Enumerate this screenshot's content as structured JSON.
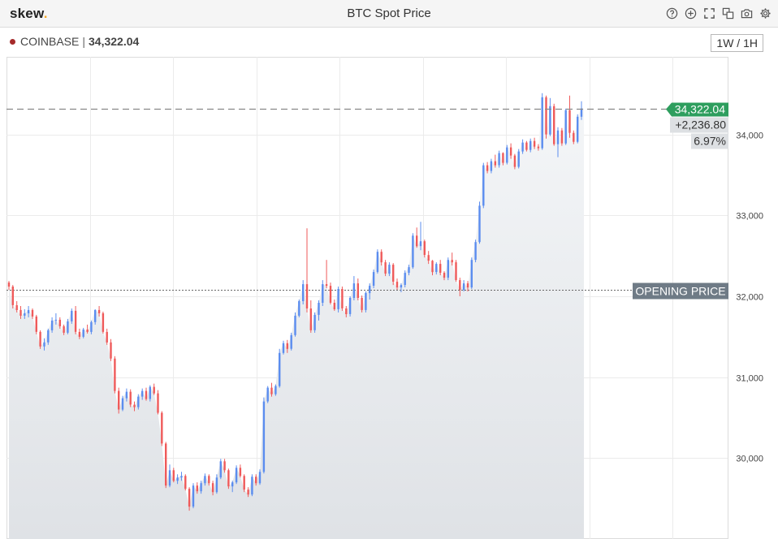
{
  "app": {
    "logo_text": "skew",
    "logo_dot": ".",
    "title": "BTC Spot Price"
  },
  "toolbar_icons": [
    "help-icon",
    "add-icon",
    "fullscreen-icon",
    "duplicate-icon",
    "camera-icon",
    "settings-icon"
  ],
  "series_info": {
    "exchange": "COINBASE",
    "separator": "|",
    "last_price": "34,322.04"
  },
  "interval_button": "1W / 1H",
  "price_tags": {
    "last": "34,322.04",
    "change": "+2,236.80",
    "change_pct": "6.97%",
    "opening_label": "OPENING PRICE"
  },
  "colors": {
    "up": "#5b8def",
    "down": "#ef5a5a",
    "last_tag": "#2e9e5e",
    "opening_tag": "#6f7b86"
  },
  "chart_data": {
    "type": "candlestick",
    "title": "BTC Spot Price",
    "ylim": [
      29000,
      34960
    ],
    "yticks": [
      30000,
      31000,
      32000,
      33000,
      34000
    ],
    "ytick_labels": [
      "30,000",
      "31,000",
      "32,000",
      "33,000",
      "34,000"
    ],
    "opening_price": 32085,
    "last_price": 34322.04,
    "grid": true,
    "candles": [
      [
        32170,
        32190,
        32080,
        32120
      ],
      [
        32120,
        32140,
        31850,
        31890
      ],
      [
        31890,
        31940,
        31800,
        31830
      ],
      [
        31830,
        31880,
        31720,
        31760
      ],
      [
        31760,
        31840,
        31720,
        31790
      ],
      [
        31790,
        31880,
        31740,
        31830
      ],
      [
        31830,
        31850,
        31720,
        31750
      ],
      [
        31750,
        31770,
        31530,
        31560
      ],
      [
        31560,
        31580,
        31350,
        31380
      ],
      [
        31380,
        31480,
        31330,
        31430
      ],
      [
        31430,
        31600,
        31400,
        31580
      ],
      [
        31580,
        31740,
        31550,
        31700
      ],
      [
        31700,
        31790,
        31650,
        31710
      ],
      [
        31710,
        31740,
        31600,
        31630
      ],
      [
        31630,
        31650,
        31520,
        31550
      ],
      [
        31550,
        31720,
        31530,
        31690
      ],
      [
        31690,
        31850,
        31660,
        31820
      ],
      [
        31820,
        31880,
        31530,
        31560
      ],
      [
        31560,
        31600,
        31470,
        31500
      ],
      [
        31500,
        31610,
        31480,
        31590
      ],
      [
        31590,
        31650,
        31540,
        31560
      ],
      [
        31560,
        31700,
        31530,
        31680
      ],
      [
        31680,
        31840,
        31650,
        31830
      ],
      [
        31830,
        31880,
        31750,
        31790
      ],
      [
        31790,
        31810,
        31540,
        31560
      ],
      [
        31560,
        31600,
        31400,
        31430
      ],
      [
        31430,
        31470,
        31200,
        31230
      ],
      [
        31230,
        31260,
        30800,
        30830
      ],
      [
        30830,
        30870,
        30550,
        30600
      ],
      [
        30600,
        30770,
        30580,
        30740
      ],
      [
        30740,
        30860,
        30700,
        30820
      ],
      [
        30820,
        30850,
        30630,
        30660
      ],
      [
        30660,
        30700,
        30580,
        30630
      ],
      [
        30630,
        30790,
        30600,
        30760
      ],
      [
        30760,
        30860,
        30720,
        30830
      ],
      [
        30830,
        30870,
        30710,
        30730
      ],
      [
        30730,
        30900,
        30700,
        30880
      ],
      [
        30880,
        30920,
        30780,
        30800
      ],
      [
        30800,
        30840,
        30540,
        30560
      ],
      [
        30560,
        30580,
        30150,
        30180
      ],
      [
        30180,
        30200,
        29630,
        29660
      ],
      [
        29660,
        29920,
        29640,
        29850
      ],
      [
        29850,
        29880,
        29700,
        29720
      ],
      [
        29720,
        29800,
        29680,
        29760
      ],
      [
        29760,
        29830,
        29720,
        29780
      ],
      [
        29780,
        29800,
        29600,
        29620
      ],
      [
        29620,
        29640,
        29350,
        29400
      ],
      [
        29400,
        29690,
        29380,
        29660
      ],
      [
        29660,
        29700,
        29560,
        29590
      ],
      [
        29590,
        29720,
        29560,
        29690
      ],
      [
        29690,
        29810,
        29660,
        29780
      ],
      [
        29780,
        29800,
        29660,
        29690
      ],
      [
        29690,
        29720,
        29540,
        29580
      ],
      [
        29580,
        29800,
        29560,
        29760
      ],
      [
        29760,
        29990,
        29740,
        29960
      ],
      [
        29960,
        29990,
        29820,
        29850
      ],
      [
        29850,
        29870,
        29620,
        29650
      ],
      [
        29650,
        29720,
        29580,
        29700
      ],
      [
        29700,
        29910,
        29680,
        29880
      ],
      [
        29880,
        29920,
        29760,
        29780
      ],
      [
        29780,
        29800,
        29580,
        29610
      ],
      [
        29610,
        29640,
        29520,
        29550
      ],
      [
        29550,
        29800,
        29530,
        29770
      ],
      [
        29770,
        29800,
        29660,
        29690
      ],
      [
        29690,
        29860,
        29670,
        29830
      ],
      [
        29830,
        30750,
        29810,
        30700
      ],
      [
        30700,
        30890,
        30680,
        30870
      ],
      [
        30870,
        30930,
        30760,
        30790
      ],
      [
        30790,
        30910,
        30770,
        30890
      ],
      [
        30890,
        31350,
        30870,
        31300
      ],
      [
        31300,
        31450,
        31280,
        31420
      ],
      [
        31420,
        31460,
        31300,
        31350
      ],
      [
        31350,
        31550,
        31330,
        31520
      ],
      [
        31520,
        31800,
        31500,
        31760
      ],
      [
        31760,
        31960,
        31740,
        31940
      ],
      [
        31940,
        32200,
        31900,
        32150
      ],
      [
        32150,
        32840,
        31800,
        31850
      ],
      [
        31850,
        31950,
        31550,
        31580
      ],
      [
        31580,
        31800,
        31550,
        31770
      ],
      [
        31770,
        31950,
        31700,
        31920
      ],
      [
        31920,
        32200,
        31880,
        32150
      ],
      [
        32150,
        32450,
        32100,
        32130
      ],
      [
        32130,
        32170,
        31900,
        31920
      ],
      [
        31920,
        31960,
        31820,
        31840
      ],
      [
        31840,
        32120,
        31800,
        32090
      ],
      [
        32090,
        32120,
        31820,
        31850
      ],
      [
        31850,
        31880,
        31740,
        31780
      ],
      [
        31780,
        32000,
        31750,
        31980
      ],
      [
        31980,
        32250,
        31950,
        32160
      ],
      [
        32160,
        32220,
        31950,
        31980
      ],
      [
        31980,
        32010,
        31800,
        31830
      ],
      [
        31830,
        32060,
        31800,
        32040
      ],
      [
        32040,
        32160,
        31960,
        32130
      ],
      [
        32130,
        32330,
        32100,
        32300
      ],
      [
        32300,
        32580,
        32280,
        32550
      ],
      [
        32550,
        32580,
        32380,
        32420
      ],
      [
        32420,
        32450,
        32250,
        32280
      ],
      [
        32280,
        32420,
        32250,
        32390
      ],
      [
        32390,
        32410,
        32140,
        32180
      ],
      [
        32180,
        32220,
        32080,
        32110
      ],
      [
        32110,
        32160,
        32050,
        32140
      ],
      [
        32140,
        32320,
        32110,
        32290
      ],
      [
        32290,
        32390,
        32260,
        32360
      ],
      [
        32360,
        32780,
        32340,
        32750
      ],
      [
        32750,
        32850,
        32600,
        32620
      ],
      [
        32620,
        32920,
        32570,
        32680
      ],
      [
        32680,
        32700,
        32480,
        32510
      ],
      [
        32510,
        32560,
        32400,
        32440
      ],
      [
        32440,
        32450,
        32260,
        32300
      ],
      [
        32300,
        32420,
        32270,
        32400
      ],
      [
        32400,
        32450,
        32260,
        32290
      ],
      [
        32290,
        32310,
        32200,
        32230
      ],
      [
        32230,
        32480,
        32200,
        32450
      ],
      [
        32450,
        32540,
        32380,
        32420
      ],
      [
        32420,
        32450,
        32180,
        32200
      ],
      [
        32200,
        32230,
        32000,
        32080
      ],
      [
        32080,
        32200,
        32060,
        32160
      ],
      [
        32160,
        32190,
        32060,
        32110
      ],
      [
        32110,
        32480,
        32090,
        32450
      ],
      [
        32450,
        32700,
        32420,
        32670
      ],
      [
        32670,
        33170,
        32650,
        33120
      ],
      [
        33120,
        33650,
        33090,
        33620
      ],
      [
        33620,
        33660,
        33520,
        33550
      ],
      [
        33550,
        33700,
        33520,
        33670
      ],
      [
        33670,
        33750,
        33590,
        33620
      ],
      [
        33620,
        33800,
        33590,
        33770
      ],
      [
        33770,
        33780,
        33620,
        33650
      ],
      [
        33650,
        33870,
        33630,
        33840
      ],
      [
        33840,
        33890,
        33700,
        33740
      ],
      [
        33740,
        33760,
        33570,
        33600
      ],
      [
        33600,
        33820,
        33580,
        33790
      ],
      [
        33790,
        33940,
        33760,
        33900
      ],
      [
        33900,
        33920,
        33790,
        33810
      ],
      [
        33810,
        33950,
        33780,
        33920
      ],
      [
        33920,
        33960,
        33820,
        33850
      ],
      [
        33850,
        33880,
        33800,
        33830
      ],
      [
        33830,
        34510,
        33810,
        34460
      ],
      [
        34460,
        34480,
        33950,
        34000
      ],
      [
        34000,
        34450,
        33980,
        34350
      ],
      [
        34350,
        34380,
        33860,
        33880
      ],
      [
        33880,
        34090,
        33720,
        34050
      ],
      [
        34050,
        34080,
        33860,
        33890
      ],
      [
        33890,
        34320,
        33870,
        34300
      ],
      [
        34300,
        34480,
        33960,
        34020
      ],
      [
        34020,
        34050,
        33880,
        33910
      ],
      [
        33910,
        34250,
        33890,
        34220
      ],
      [
        34220,
        34410,
        34180,
        34322.04
      ]
    ]
  }
}
